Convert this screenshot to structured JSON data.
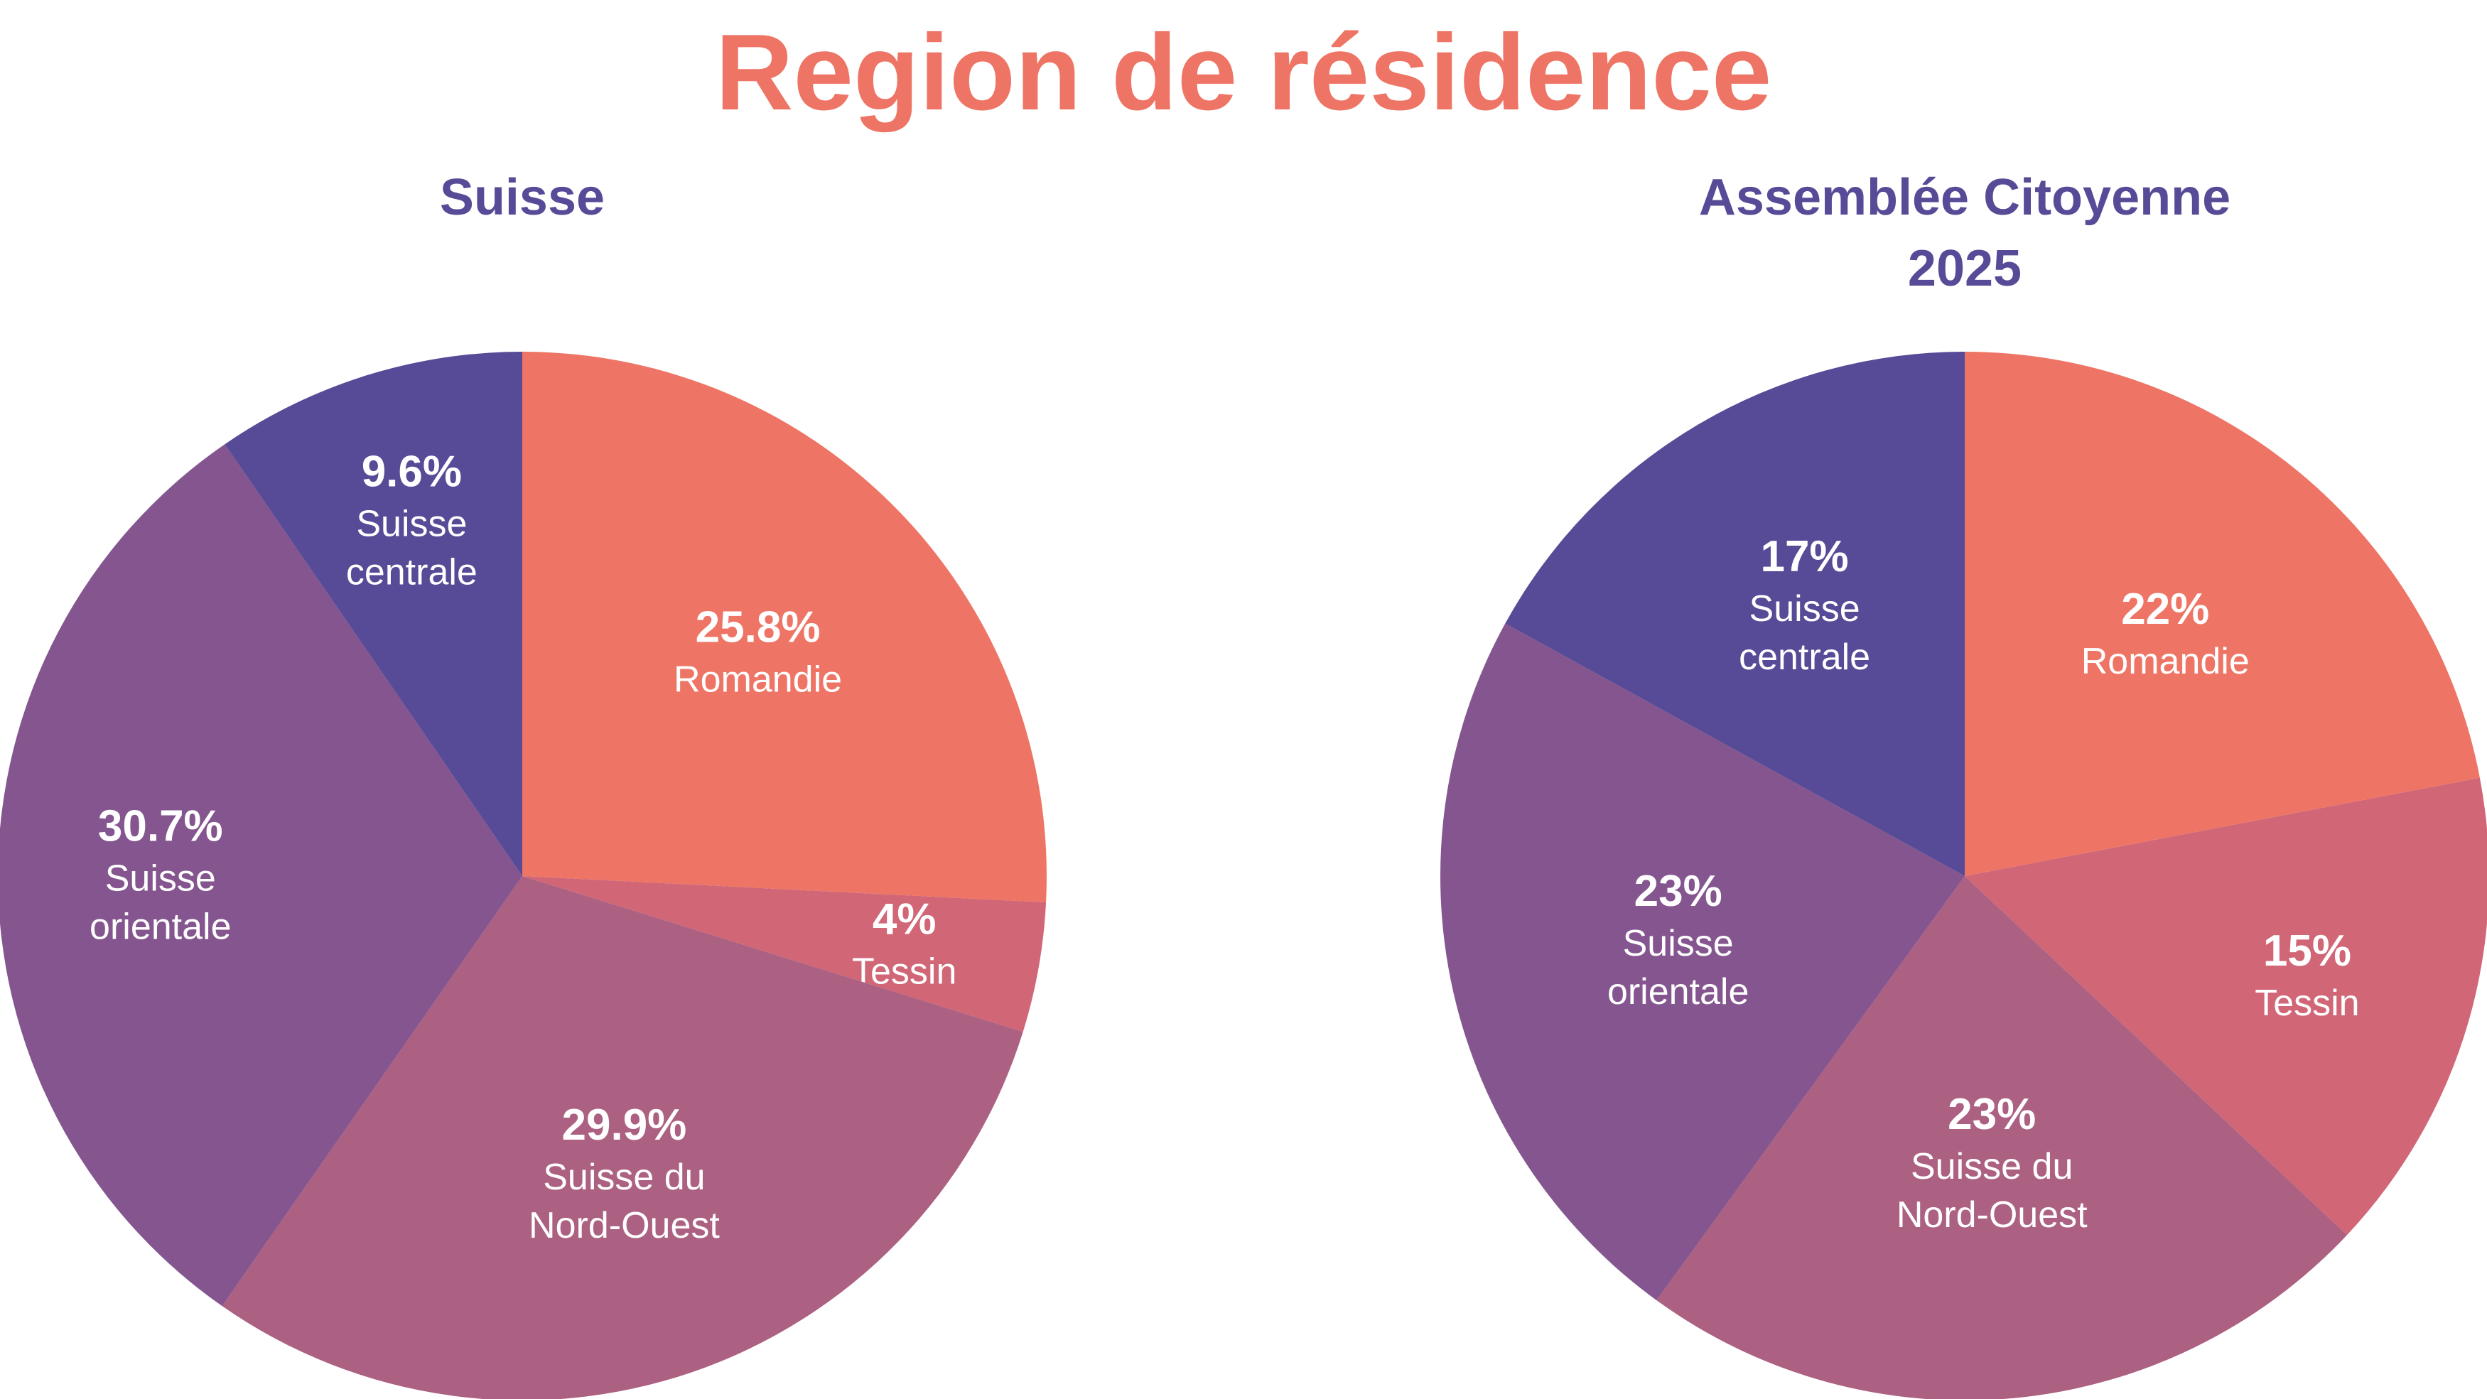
{
  "title": "Region de résidence",
  "colors": {
    "title": "#EE7565",
    "subtitle": "#574A97",
    "label": "#FFFFFF"
  },
  "chart_data": [
    {
      "type": "pie",
      "title": "Suisse",
      "start_angle_deg": 0,
      "direction": "clockwise",
      "slices": [
        {
          "name": "Romandie",
          "value": 25.8,
          "label": "25.8%",
          "name_lines": [
            "Romandie"
          ],
          "color": "#EE7565"
        },
        {
          "name": "Tessin",
          "value": 4,
          "label": "4%",
          "name_lines": [
            "Tessin"
          ],
          "color": "#D06676"
        },
        {
          "name": "Suisse du Nord-Ouest",
          "value": 29.9,
          "label": "29.9%",
          "name_lines": [
            "Suisse du",
            "Nord-Ouest"
          ],
          "color": "#AC6082"
        },
        {
          "name": "Suisse orientale",
          "value": 30.7,
          "label": "30.7%",
          "name_lines": [
            "Suisse",
            "orientale"
          ],
          "color": "#84558F"
        },
        {
          "name": "Suisse centrale",
          "value": 9.6,
          "label": "9.6%",
          "name_lines": [
            "Suisse",
            "centrale"
          ],
          "color": "#574A97"
        }
      ]
    },
    {
      "type": "pie",
      "title": "Assemblée Citoyenne 2025",
      "title_lines": [
        "Assemblée Citoyenne",
        "2025"
      ],
      "start_angle_deg": 0,
      "direction": "clockwise",
      "slices": [
        {
          "name": "Romandie",
          "value": 22,
          "label": "22%",
          "name_lines": [
            "Romandie"
          ],
          "color": "#EE7565"
        },
        {
          "name": "Tessin",
          "value": 15,
          "label": "15%",
          "name_lines": [
            "Tessin"
          ],
          "color": "#D06676"
        },
        {
          "name": "Suisse du Nord-Ouest",
          "value": 23,
          "label": "23%",
          "name_lines": [
            "Suisse du",
            "Nord-Ouest"
          ],
          "color": "#AC6082"
        },
        {
          "name": "Suisse orientale",
          "value": 23,
          "label": "23%",
          "name_lines": [
            "Suisse",
            "orientale"
          ],
          "color": "#84558F"
        },
        {
          "name": "Suisse centrale",
          "value": 17,
          "label": "17%",
          "name_lines": [
            "Suisse",
            "centrale"
          ],
          "color": "#574A97"
        }
      ]
    }
  ]
}
